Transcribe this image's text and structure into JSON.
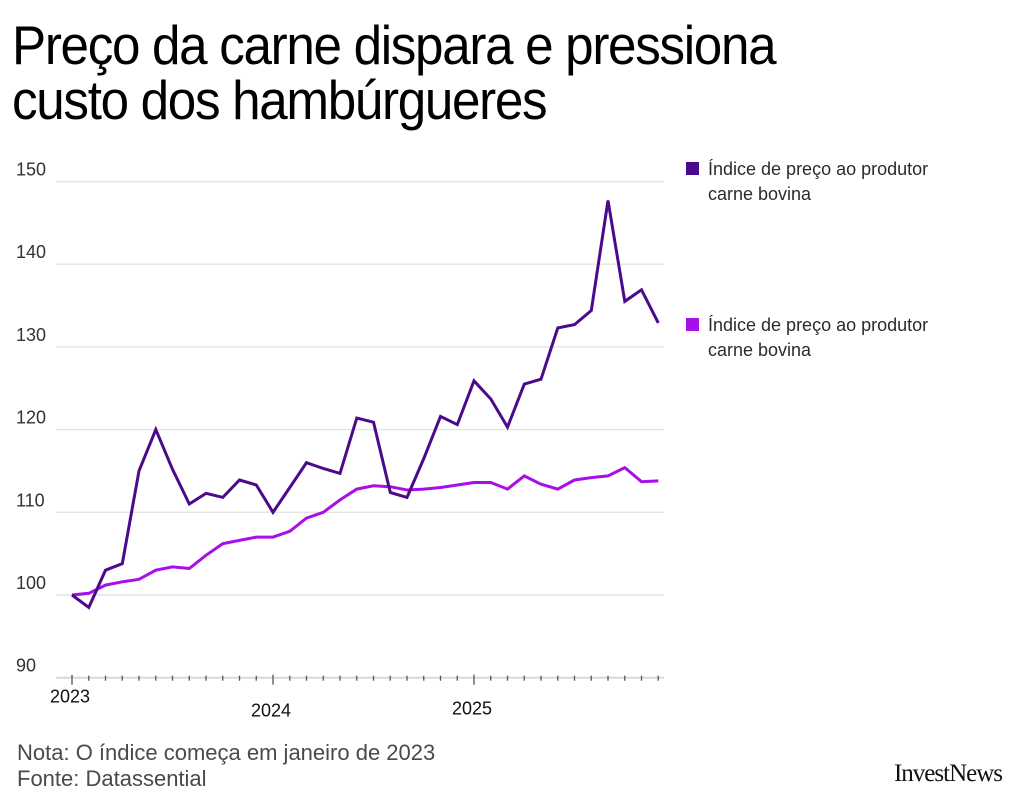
{
  "title_lines": [
    "Preço da carne dispara e pressiona",
    "custo dos hambúrgueres"
  ],
  "footer": {
    "note": "Nota: O índice começa em janeiro de 2023",
    "source": "Fonte: Datassential"
  },
  "logo": "InvestNews",
  "chart_data": {
    "type": "line",
    "title": "Preço da carne dispara e pressiona custo dos hambúrgueres",
    "xlabel": "",
    "ylabel": "",
    "ylim": [
      90,
      150
    ],
    "yticks": [
      90,
      100,
      110,
      120,
      130,
      140,
      150
    ],
    "xticks": [
      {
        "label": "2023",
        "index": 0
      },
      {
        "label": "2024",
        "index": 12
      },
      {
        "label": "2025",
        "index": 24
      }
    ],
    "x": [
      "2023-01",
      "2023-02",
      "2023-03",
      "2023-04",
      "2023-05",
      "2023-06",
      "2023-07",
      "2023-08",
      "2023-09",
      "2023-10",
      "2023-11",
      "2023-12",
      "2024-01",
      "2024-02",
      "2024-03",
      "2024-04",
      "2024-05",
      "2024-06",
      "2024-07",
      "2024-08",
      "2024-09",
      "2024-10",
      "2024-11",
      "2024-12",
      "2025-01",
      "2025-02",
      "2025-03",
      "2025-04",
      "2025-05",
      "2025-06",
      "2025-07",
      "2025-08",
      "2025-09",
      "2025-10",
      "2025-11",
      "2025-12"
    ],
    "grid": true,
    "legend_position": "right",
    "series": [
      {
        "name": "Índice de preço ao produtor carne bovina",
        "color": "#4b0a8c",
        "values": [
          100,
          98.5,
          103,
          103.8,
          115,
          120,
          115.2,
          111,
          112.3,
          111.8,
          113.9,
          113.3,
          110,
          113,
          116,
          115.3,
          114.7,
          121.4,
          120.9,
          112.4,
          111.8,
          116.5,
          121.6,
          120.6,
          125.9,
          123.7,
          120.3,
          125.5,
          126.1,
          132.3,
          132.7,
          134.4,
          147.7,
          135.5,
          136.9,
          132.9
        ]
      },
      {
        "name": "Índice de preço ao produtor carne bovina",
        "color": "#a80ee8",
        "values": [
          100,
          100.2,
          101.2,
          101.6,
          101.9,
          103,
          103.4,
          103.2,
          104.8,
          106.2,
          106.6,
          107,
          107,
          107.7,
          109.3,
          110,
          111.5,
          112.8,
          113.2,
          113.1,
          112.7,
          112.8,
          113,
          113.3,
          113.6,
          113.6,
          112.8,
          114.4,
          113.4,
          112.8,
          113.9,
          114.2,
          114.4,
          115.4,
          113.7,
          113.8
        ]
      }
    ]
  }
}
